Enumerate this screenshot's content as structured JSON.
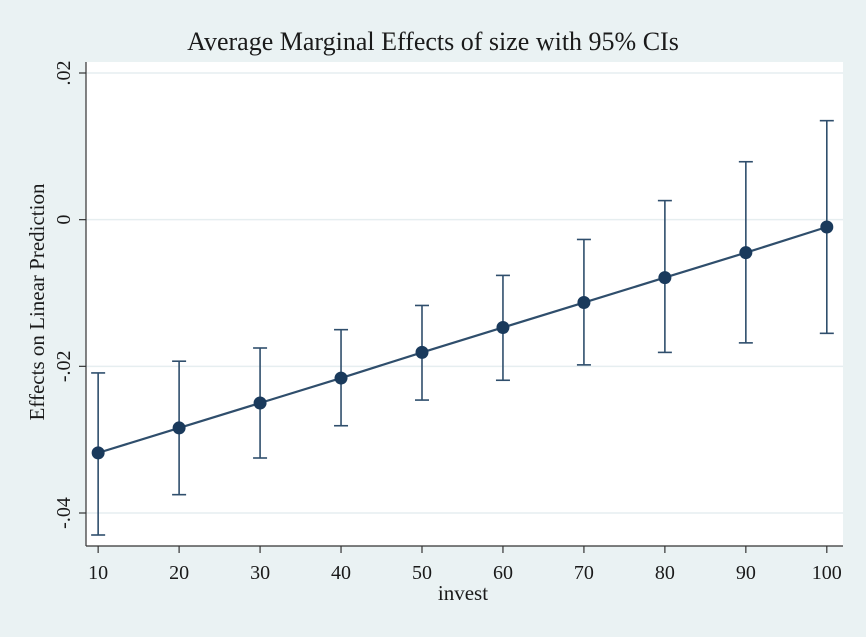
{
  "chart_data": {
    "type": "line",
    "title": "Average Marginal Effects of size with 95% CIs",
    "xlabel": "invest",
    "ylabel": "Effects on Linear Prediction",
    "x": [
      10,
      20,
      30,
      40,
      50,
      60,
      70,
      80,
      90,
      100
    ],
    "series": [
      {
        "name": "Average marginal effect",
        "values": [
          -0.0318,
          -0.0284,
          -0.025,
          -0.0216,
          -0.0181,
          -0.0147,
          -0.0113,
          -0.0079,
          -0.0045,
          -0.001
        ],
        "ci_lower": [
          -0.043,
          -0.0375,
          -0.0325,
          -0.0281,
          -0.0246,
          -0.0219,
          -0.0198,
          -0.0181,
          -0.0168,
          -0.0155
        ],
        "ci_upper": [
          -0.0209,
          -0.0193,
          -0.0175,
          -0.015,
          -0.0117,
          -0.0076,
          -0.0027,
          0.0026,
          0.0079,
          0.0135
        ]
      }
    ],
    "xticks": [
      "10",
      "20",
      "30",
      "40",
      "50",
      "60",
      "70",
      "80",
      "90",
      "100"
    ],
    "yticks": [
      {
        "value": -0.04,
        "label": "-.04"
      },
      {
        "value": -0.02,
        "label": "-.02"
      },
      {
        "value": 0,
        "label": "0"
      },
      {
        "value": 0.02,
        "label": ".02"
      }
    ],
    "xlim": [
      8.5,
      102
    ],
    "ylim": [
      -0.0445,
      0.0215
    ],
    "grid": true,
    "colors": {
      "background": "#eaf2f3",
      "plot_background": "#ffffff",
      "line": "#2f4e6c",
      "marker": "#1a3a5c",
      "ci": "#2f4e6c",
      "grid": "#e6eef0",
      "axis": "#333333"
    }
  }
}
